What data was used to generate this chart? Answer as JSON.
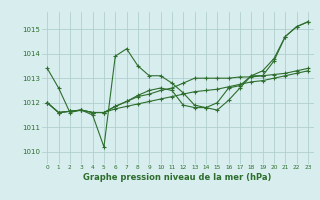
{
  "bg_color": "#d8eeee",
  "grid_color": "#b0d0d0",
  "line_color": "#2d6e2d",
  "marker": "+",
  "title": "Graphe pression niveau de la mer (hPa)",
  "ylim": [
    1009.5,
    1015.7
  ],
  "yticks": [
    1010,
    1011,
    1012,
    1013,
    1014,
    1015
  ],
  "xlim": [
    -0.5,
    23.5
  ],
  "xticks": [
    0,
    1,
    2,
    3,
    4,
    5,
    6,
    7,
    8,
    9,
    10,
    11,
    12,
    13,
    14,
    15,
    16,
    17,
    18,
    19,
    20,
    21,
    22,
    23
  ],
  "series": [
    {
      "x": [
        0,
        1,
        2,
        3,
        4,
        5,
        6,
        7,
        8,
        9,
        10,
        11,
        12,
        13,
        14,
        15,
        16,
        17,
        18,
        19,
        20,
        21,
        22,
        23
      ],
      "y": [
        1013.4,
        1012.6,
        1011.6,
        1011.7,
        1011.5,
        1010.2,
        1013.9,
        1014.2,
        1013.5,
        1013.1,
        1013.1,
        1012.8,
        1012.4,
        1011.9,
        1011.8,
        1011.7,
        1012.1,
        1012.6,
        1013.1,
        1013.1,
        1013.7,
        1014.7,
        1015.1,
        1015.3
      ]
    },
    {
      "x": [
        0,
        1,
        2,
        3,
        4,
        5,
        6,
        7,
        8,
        9,
        10,
        11,
        12,
        13,
        14,
        15,
        16,
        17,
        18,
        19,
        20,
        21,
        22,
        23
      ],
      "y": [
        1012.0,
        1011.6,
        1011.65,
        1011.7,
        1011.6,
        1011.6,
        1011.75,
        1011.85,
        1011.95,
        1012.05,
        1012.15,
        1012.25,
        1012.35,
        1012.45,
        1012.5,
        1012.55,
        1012.65,
        1012.75,
        1012.85,
        1012.9,
        1013.0,
        1013.1,
        1013.2,
        1013.3
      ]
    },
    {
      "x": [
        0,
        1,
        2,
        3,
        4,
        5,
        6,
        7,
        8,
        9,
        10,
        11,
        12,
        13,
        14,
        15,
        16,
        17,
        18,
        19,
        20,
        21,
        22,
        23
      ],
      "y": [
        1012.0,
        1011.6,
        1011.65,
        1011.7,
        1011.6,
        1011.6,
        1011.85,
        1012.05,
        1012.25,
        1012.35,
        1012.5,
        1012.6,
        1012.8,
        1013.0,
        1013.0,
        1013.0,
        1013.0,
        1013.05,
        1013.05,
        1013.1,
        1013.15,
        1013.2,
        1013.3,
        1013.4
      ]
    },
    {
      "x": [
        0,
        1,
        2,
        3,
        4,
        5,
        6,
        7,
        8,
        9,
        10,
        11,
        12,
        13,
        14,
        15,
        16,
        17,
        18,
        19,
        20,
        21,
        22,
        23
      ],
      "y": [
        1012.0,
        1011.6,
        1011.65,
        1011.7,
        1011.6,
        1011.6,
        1011.85,
        1012.05,
        1012.3,
        1012.5,
        1012.6,
        1012.5,
        1011.9,
        1011.8,
        1011.8,
        1012.0,
        1012.6,
        1012.7,
        1013.1,
        1013.3,
        1013.8,
        1014.7,
        1015.1,
        1015.3
      ]
    }
  ]
}
